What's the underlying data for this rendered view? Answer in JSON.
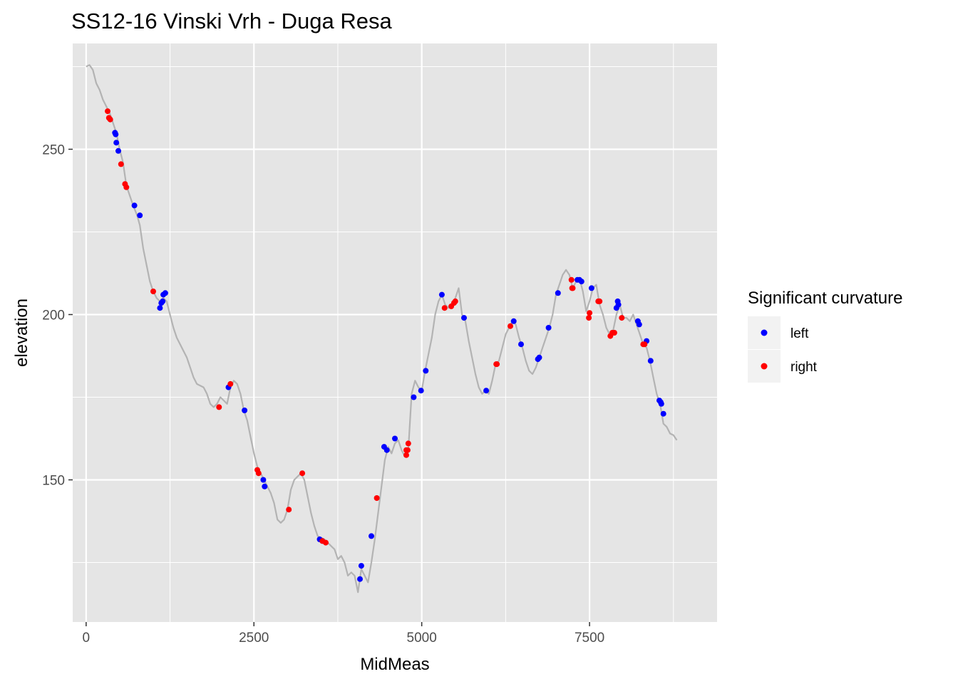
{
  "chart_data": {
    "type": "scatter",
    "title": "SS12-16 Vinski Vrh - Duga Resa",
    "xlabel": "MidMeas",
    "ylabel": "elevation",
    "xlim": [
      -200,
      9400
    ],
    "ylim": [
      107,
      282
    ],
    "x_ticks": [
      0,
      2500,
      5000,
      7500
    ],
    "x_tick_labels": [
      "0",
      "2500",
      "5000",
      "7500"
    ],
    "y_ticks": [
      150,
      200,
      250
    ],
    "y_tick_labels": [
      "150",
      "200",
      "250"
    ],
    "grid": true,
    "legend": {
      "title": "Significant curvature",
      "position": "right",
      "entries": [
        {
          "label": "left",
          "color": "#0000ff"
        },
        {
          "label": "right",
          "color": "#ff0000"
        }
      ]
    },
    "profile_line": {
      "color": "#b3b3b3",
      "points": [
        [
          0,
          275
        ],
        [
          50,
          275.5
        ],
        [
          100,
          274
        ],
        [
          150,
          270
        ],
        [
          200,
          268
        ],
        [
          250,
          265
        ],
        [
          300,
          263
        ],
        [
          350,
          261
        ],
        [
          400,
          258
        ],
        [
          450,
          255
        ],
        [
          500,
          250
        ],
        [
          550,
          246
        ],
        [
          600,
          239
        ],
        [
          650,
          236
        ],
        [
          700,
          233
        ],
        [
          760,
          230
        ],
        [
          800,
          227
        ],
        [
          850,
          220
        ],
        [
          900,
          215
        ],
        [
          950,
          210
        ],
        [
          1000,
          207
        ],
        [
          1050,
          205
        ],
        [
          1100,
          204
        ],
        [
          1150,
          205
        ],
        [
          1200,
          204
        ],
        [
          1250,
          200
        ],
        [
          1300,
          196
        ],
        [
          1350,
          193
        ],
        [
          1400,
          191
        ],
        [
          1450,
          189
        ],
        [
          1500,
          187
        ],
        [
          1550,
          184
        ],
        [
          1600,
          181
        ],
        [
          1650,
          179
        ],
        [
          1700,
          178.5
        ],
        [
          1750,
          178
        ],
        [
          1800,
          176
        ],
        [
          1850,
          173
        ],
        [
          1900,
          172
        ],
        [
          1950,
          173
        ],
        [
          2000,
          175
        ],
        [
          2050,
          174
        ],
        [
          2100,
          173
        ],
        [
          2150,
          178
        ],
        [
          2200,
          180
        ],
        [
          2250,
          179
        ],
        [
          2300,
          176
        ],
        [
          2350,
          171
        ],
        [
          2400,
          168
        ],
        [
          2450,
          163
        ],
        [
          2500,
          158
        ],
        [
          2550,
          154
        ],
        [
          2600,
          152
        ],
        [
          2650,
          150
        ],
        [
          2700,
          148
        ],
        [
          2750,
          146
        ],
        [
          2800,
          143
        ],
        [
          2850,
          138
        ],
        [
          2900,
          137
        ],
        [
          2950,
          138
        ],
        [
          3000,
          141
        ],
        [
          3050,
          147
        ],
        [
          3100,
          150
        ],
        [
          3150,
          151
        ],
        [
          3200,
          152
        ],
        [
          3250,
          150
        ],
        [
          3300,
          145
        ],
        [
          3350,
          140
        ],
        [
          3400,
          136
        ],
        [
          3450,
          133
        ],
        [
          3500,
          132.5
        ],
        [
          3550,
          132
        ],
        [
          3600,
          131
        ],
        [
          3650,
          130
        ],
        [
          3700,
          129
        ],
        [
          3750,
          126
        ],
        [
          3800,
          127
        ],
        [
          3850,
          125
        ],
        [
          3900,
          121
        ],
        [
          3950,
          122
        ],
        [
          4000,
          121
        ],
        [
          4050,
          116
        ],
        [
          4100,
          123
        ],
        [
          4150,
          121
        ],
        [
          4200,
          119
        ],
        [
          4250,
          125
        ],
        [
          4300,
          132
        ],
        [
          4350,
          140
        ],
        [
          4400,
          148
        ],
        [
          4450,
          156
        ],
        [
          4500,
          160
        ],
        [
          4550,
          158
        ],
        [
          4600,
          161
        ],
        [
          4650,
          162
        ],
        [
          4700,
          159
        ],
        [
          4750,
          157
        ],
        [
          4800,
          159
        ],
        [
          4850,
          176
        ],
        [
          4900,
          180
        ],
        [
          4950,
          178
        ],
        [
          5000,
          177
        ],
        [
          5050,
          183
        ],
        [
          5100,
          188
        ],
        [
          5150,
          193
        ],
        [
          5200,
          200
        ],
        [
          5250,
          204
        ],
        [
          5300,
          206
        ],
        [
          5350,
          203
        ],
        [
          5400,
          202
        ],
        [
          5450,
          203
        ],
        [
          5500,
          205
        ],
        [
          5550,
          208
        ],
        [
          5600,
          200
        ],
        [
          5650,
          198
        ],
        [
          5700,
          192
        ],
        [
          5750,
          187
        ],
        [
          5800,
          182
        ],
        [
          5850,
          178
        ],
        [
          5900,
          176
        ],
        [
          5950,
          177
        ],
        [
          6000,
          176
        ],
        [
          6050,
          180
        ],
        [
          6100,
          185
        ],
        [
          6150,
          186
        ],
        [
          6200,
          190
        ],
        [
          6250,
          194
        ],
        [
          6300,
          196
        ],
        [
          6350,
          198
        ],
        [
          6400,
          197
        ],
        [
          6450,
          193
        ],
        [
          6500,
          190
        ],
        [
          6550,
          186
        ],
        [
          6600,
          183
        ],
        [
          6650,
          182
        ],
        [
          6700,
          184
        ],
        [
          6750,
          187
        ],
        [
          6800,
          190
        ],
        [
          6850,
          193
        ],
        [
          6900,
          196
        ],
        [
          6950,
          200
        ],
        [
          7000,
          206
        ],
        [
          7050,
          209
        ],
        [
          7100,
          212
        ],
        [
          7150,
          213.5
        ],
        [
          7200,
          212
        ],
        [
          7250,
          208
        ],
        [
          7300,
          210
        ],
        [
          7350,
          211
        ],
        [
          7400,
          207
        ],
        [
          7450,
          201
        ],
        [
          7500,
          204
        ],
        [
          7550,
          208
        ],
        [
          7600,
          209
        ],
        [
          7650,
          203
        ],
        [
          7700,
          200
        ],
        [
          7750,
          196
        ],
        [
          7800,
          194
        ],
        [
          7850,
          195
        ],
        [
          7900,
          200
        ],
        [
          7950,
          203
        ],
        [
          8000,
          199
        ],
        [
          8050,
          199
        ],
        [
          8100,
          198
        ],
        [
          8150,
          200
        ],
        [
          8200,
          197
        ],
        [
          8250,
          194
        ],
        [
          8300,
          191
        ],
        [
          8350,
          190
        ],
        [
          8400,
          186
        ],
        [
          8450,
          181
        ],
        [
          8500,
          176
        ],
        [
          8550,
          173
        ],
        [
          8600,
          167
        ],
        [
          8650,
          166
        ],
        [
          8700,
          164
        ],
        [
          8750,
          163.5
        ],
        [
          8800,
          162
        ]
      ]
    },
    "series": [
      {
        "name": "left",
        "color": "#0000ff",
        "points": [
          [
            430,
            255
          ],
          [
            440,
            254.5
          ],
          [
            450,
            252
          ],
          [
            480,
            249.5
          ],
          [
            720,
            233
          ],
          [
            800,
            230
          ],
          [
            1100,
            202
          ],
          [
            1120,
            203.5
          ],
          [
            1140,
            204
          ],
          [
            1150,
            206
          ],
          [
            1180,
            206.5
          ],
          [
            2120,
            178
          ],
          [
            2360,
            171
          ],
          [
            2640,
            150
          ],
          [
            2660,
            148
          ],
          [
            3480,
            132
          ],
          [
            3520,
            131.5
          ],
          [
            4080,
            120
          ],
          [
            4100,
            124
          ],
          [
            4250,
            133
          ],
          [
            4440,
            160
          ],
          [
            4480,
            159
          ],
          [
            4600,
            162.5
          ],
          [
            4880,
            175
          ],
          [
            4990,
            177
          ],
          [
            5060,
            183
          ],
          [
            5300,
            206
          ],
          [
            5630,
            199
          ],
          [
            5960,
            177
          ],
          [
            6370,
            198
          ],
          [
            6480,
            191
          ],
          [
            6730,
            186.5
          ],
          [
            6750,
            187
          ],
          [
            6890,
            196
          ],
          [
            7030,
            206.5
          ],
          [
            7320,
            210.5
          ],
          [
            7350,
            210.5
          ],
          [
            7380,
            210
          ],
          [
            7530,
            208
          ],
          [
            7900,
            202
          ],
          [
            7920,
            204
          ],
          [
            7930,
            203
          ],
          [
            8220,
            198
          ],
          [
            8240,
            197
          ],
          [
            8350,
            192
          ],
          [
            8410,
            186
          ],
          [
            8540,
            174
          ],
          [
            8560,
            173.5
          ],
          [
            8570,
            173
          ],
          [
            8600,
            170
          ]
        ]
      },
      {
        "name": "right",
        "color": "#ff0000",
        "points": [
          [
            320,
            261.5
          ],
          [
            340,
            259.5
          ],
          [
            360,
            259
          ],
          [
            520,
            245.5
          ],
          [
            580,
            239.5
          ],
          [
            600,
            238.5
          ],
          [
            1000,
            207
          ],
          [
            1980,
            172
          ],
          [
            2150,
            179
          ],
          [
            2550,
            153
          ],
          [
            2570,
            152
          ],
          [
            3020,
            141
          ],
          [
            3220,
            152
          ],
          [
            3520,
            131.5
          ],
          [
            3570,
            131
          ],
          [
            4330,
            144.5
          ],
          [
            4770,
            159
          ],
          [
            4770,
            157.5
          ],
          [
            4790,
            159
          ],
          [
            4800,
            161
          ],
          [
            5340,
            202
          ],
          [
            5440,
            202.5
          ],
          [
            5480,
            203.5
          ],
          [
            5500,
            204
          ],
          [
            6110,
            185
          ],
          [
            6120,
            185
          ],
          [
            6320,
            196.5
          ],
          [
            7230,
            210.5
          ],
          [
            7240,
            208
          ],
          [
            7250,
            208
          ],
          [
            7490,
            199
          ],
          [
            7500,
            200.5
          ],
          [
            7630,
            204
          ],
          [
            7650,
            204
          ],
          [
            7810,
            193.5
          ],
          [
            7840,
            194.5
          ],
          [
            7870,
            194.5
          ],
          [
            7980,
            199
          ],
          [
            8300,
            191
          ],
          [
            8320,
            191
          ]
        ]
      }
    ]
  }
}
